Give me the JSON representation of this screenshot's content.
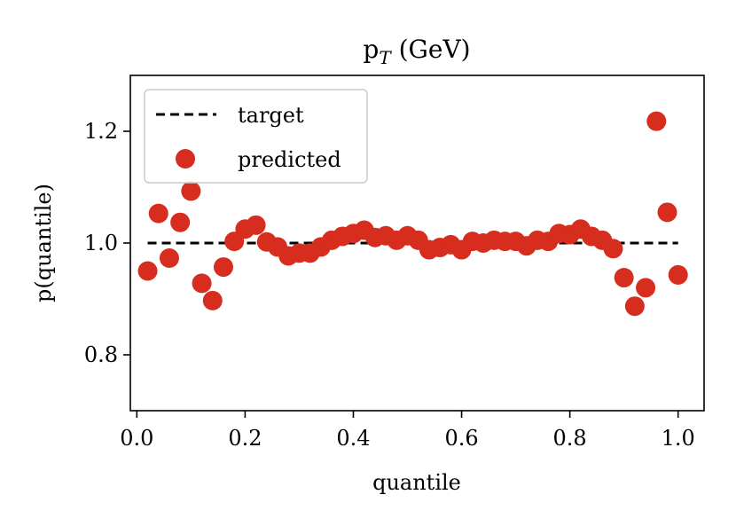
{
  "chart_data": {
    "type": "scatter",
    "title": "p",
    "title_subscript": "T",
    "title_suffix": " (GeV)",
    "xlabel": "quantile",
    "ylabel": "p(quantile)",
    "xlim": [
      -0.012,
      1.048
    ],
    "ylim": [
      0.7,
      1.3
    ],
    "xticks": [
      0.0,
      0.2,
      0.4,
      0.6,
      0.8,
      1.0
    ],
    "xtick_labels": [
      "0.0",
      "0.2",
      "0.4",
      "0.6",
      "0.8",
      "1.0"
    ],
    "yticks": [
      0.8,
      1.0,
      1.2
    ],
    "ytick_labels": [
      "0.8",
      "1.0",
      "1.2"
    ],
    "legend_position": "top-left",
    "series": [
      {
        "name": "target",
        "style": "dashed-line",
        "color": "#000000",
        "x": [
          0.02,
          1.0
        ],
        "y": [
          1.0,
          1.0
        ]
      },
      {
        "name": "predicted",
        "style": "markers",
        "color": "#d62d1f",
        "x": [
          0.02,
          0.04,
          0.06,
          0.08,
          0.1,
          0.12,
          0.14,
          0.16,
          0.18,
          0.2,
          0.22,
          0.24,
          0.26,
          0.28,
          0.3,
          0.32,
          0.34,
          0.36,
          0.38,
          0.4,
          0.42,
          0.44,
          0.46,
          0.48,
          0.5,
          0.52,
          0.54,
          0.56,
          0.58,
          0.6,
          0.62,
          0.64,
          0.66,
          0.68,
          0.7,
          0.72,
          0.74,
          0.76,
          0.78,
          0.8,
          0.82,
          0.84,
          0.86,
          0.88,
          0.9,
          0.92,
          0.94,
          0.96,
          0.98,
          1.0
        ],
        "y": [
          0.95,
          1.053,
          0.973,
          1.037,
          1.093,
          0.928,
          0.897,
          0.957,
          1.003,
          1.025,
          1.032,
          1.002,
          0.993,
          0.977,
          0.982,
          0.982,
          0.993,
          1.005,
          1.012,
          1.017,
          1.023,
          1.01,
          1.013,
          1.005,
          1.013,
          1.005,
          0.988,
          0.992,
          0.997,
          0.988,
          1.003,
          1.0,
          1.005,
          1.003,
          1.003,
          0.995,
          1.005,
          1.003,
          1.017,
          1.015,
          1.025,
          1.012,
          1.005,
          0.99,
          0.938,
          0.887,
          0.92,
          1.218,
          1.055,
          0.943
        ]
      }
    ]
  }
}
